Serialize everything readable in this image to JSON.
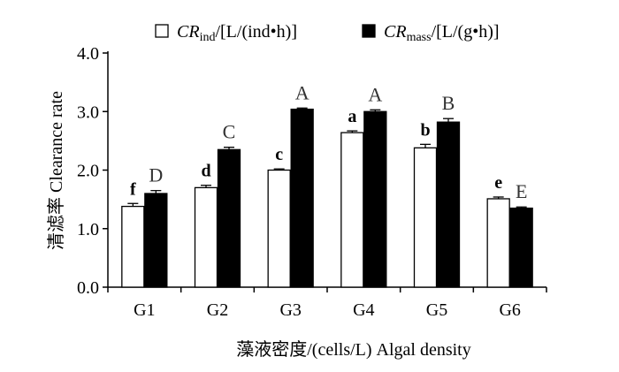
{
  "chart_data": {
    "type": "bar",
    "categories": [
      "G1",
      "G2",
      "G3",
      "G4",
      "G5",
      "G6"
    ],
    "ylim": [
      0.0,
      4.0
    ],
    "yticks": [
      "0.0",
      "1.0",
      "2.0",
      "3.0",
      "4.0"
    ],
    "ylabel": "清滤率 Clearance rate",
    "xlabel": "藻液密度/(cells/L) Algal density",
    "grid": false,
    "legend_position": "top",
    "series": [
      {
        "name": "CRind/[L/(ind•h)]",
        "legend_main": "CR",
        "legend_sub": "ind",
        "legend_rest": "/[L/(ind•h)]",
        "color": "#ffffff",
        "values": [
          1.38,
          1.7,
          2.0,
          2.64,
          2.38,
          1.51
        ],
        "errors": [
          0.05,
          0.04,
          0.02,
          0.03,
          0.06,
          0.03
        ],
        "letters": [
          "f",
          "d",
          "c",
          "a",
          "b",
          "e"
        ]
      },
      {
        "name": "CRmass/[L/(g•h)]",
        "legend_main": "CR",
        "legend_sub": "mass",
        "legend_rest": "/[L/(g•h)]",
        "color": "#000000",
        "values": [
          1.6,
          2.35,
          3.04,
          3.0,
          2.82,
          1.35
        ],
        "errors": [
          0.05,
          0.04,
          0.02,
          0.03,
          0.06,
          0.02
        ],
        "letters": [
          "D",
          "C",
          "A",
          "A",
          "B",
          "E"
        ]
      }
    ]
  }
}
